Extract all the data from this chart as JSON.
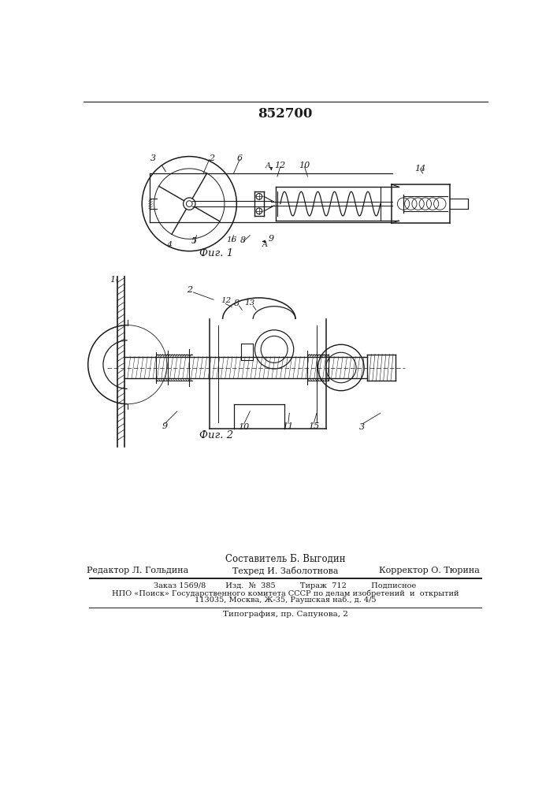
{
  "title": "852700",
  "fig1_caption": "Фиг. 1",
  "fig2_caption": "Фиг. 2",
  "composer": "Составитель Б. Выгодин",
  "editor": "Редактор Л. Гольдина",
  "techred": "Техред И. Заболотнова",
  "corrector": "Корректор О. Тюрина",
  "order_line": "Заказ 1569/8        Изд.  №  385          Тираж  712          Подписное",
  "npo_line": "НПО «Поиск» Государственного комитета СССР по делам изобретений  и  открытий",
  "address_line": "113035, Москва, Ж-35, Раушская наб., д. 4/5",
  "typog_line": "Типография, пр. Сапунова, 2",
  "bg_color": "#ffffff",
  "line_color": "#1a1a1a"
}
